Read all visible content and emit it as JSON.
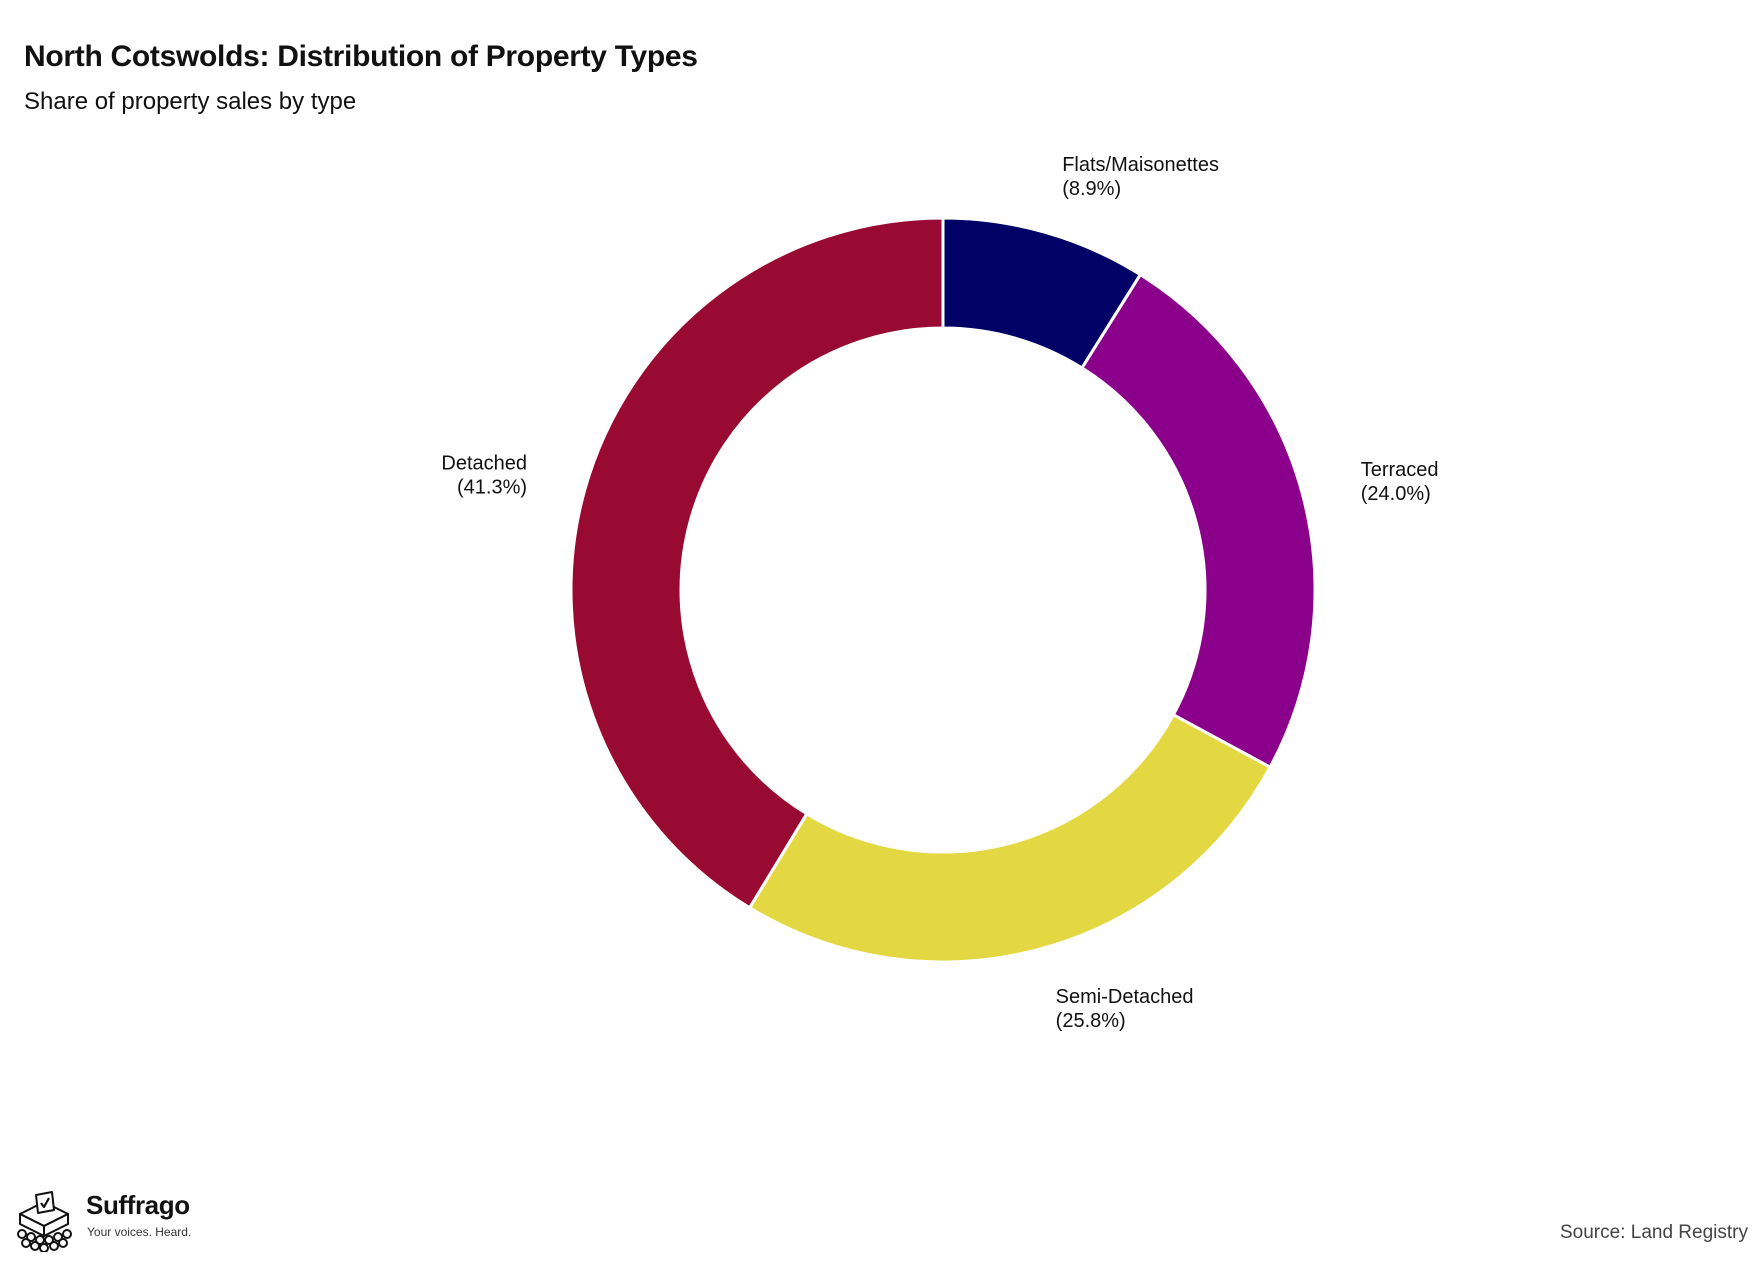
{
  "chart_data": {
    "type": "pie",
    "variant": "donut",
    "title": "North Cotswolds: Distribution of Property Types",
    "subtitle": "Share of property sales by type",
    "slices": [
      {
        "label": "Flats/Maisonettes",
        "value": 8.9,
        "display": "(8.9%)",
        "color": "#000066"
      },
      {
        "label": "Terraced",
        "value": 24.0,
        "display": "(24.0%)",
        "color": "#8b008b"
      },
      {
        "label": "Semi-Detached",
        "value": 25.8,
        "display": "(25.8%)",
        "color": "#e3d841"
      },
      {
        "label": "Detached",
        "value": 41.3,
        "display": "(41.3%)",
        "color": "#990a32"
      }
    ],
    "legend": "none",
    "source": "Source: Land Registry"
  },
  "brand": {
    "name": "Suffrago",
    "tagline": "Your voices. Heard.",
    "icon": "ballot-box-icon"
  }
}
